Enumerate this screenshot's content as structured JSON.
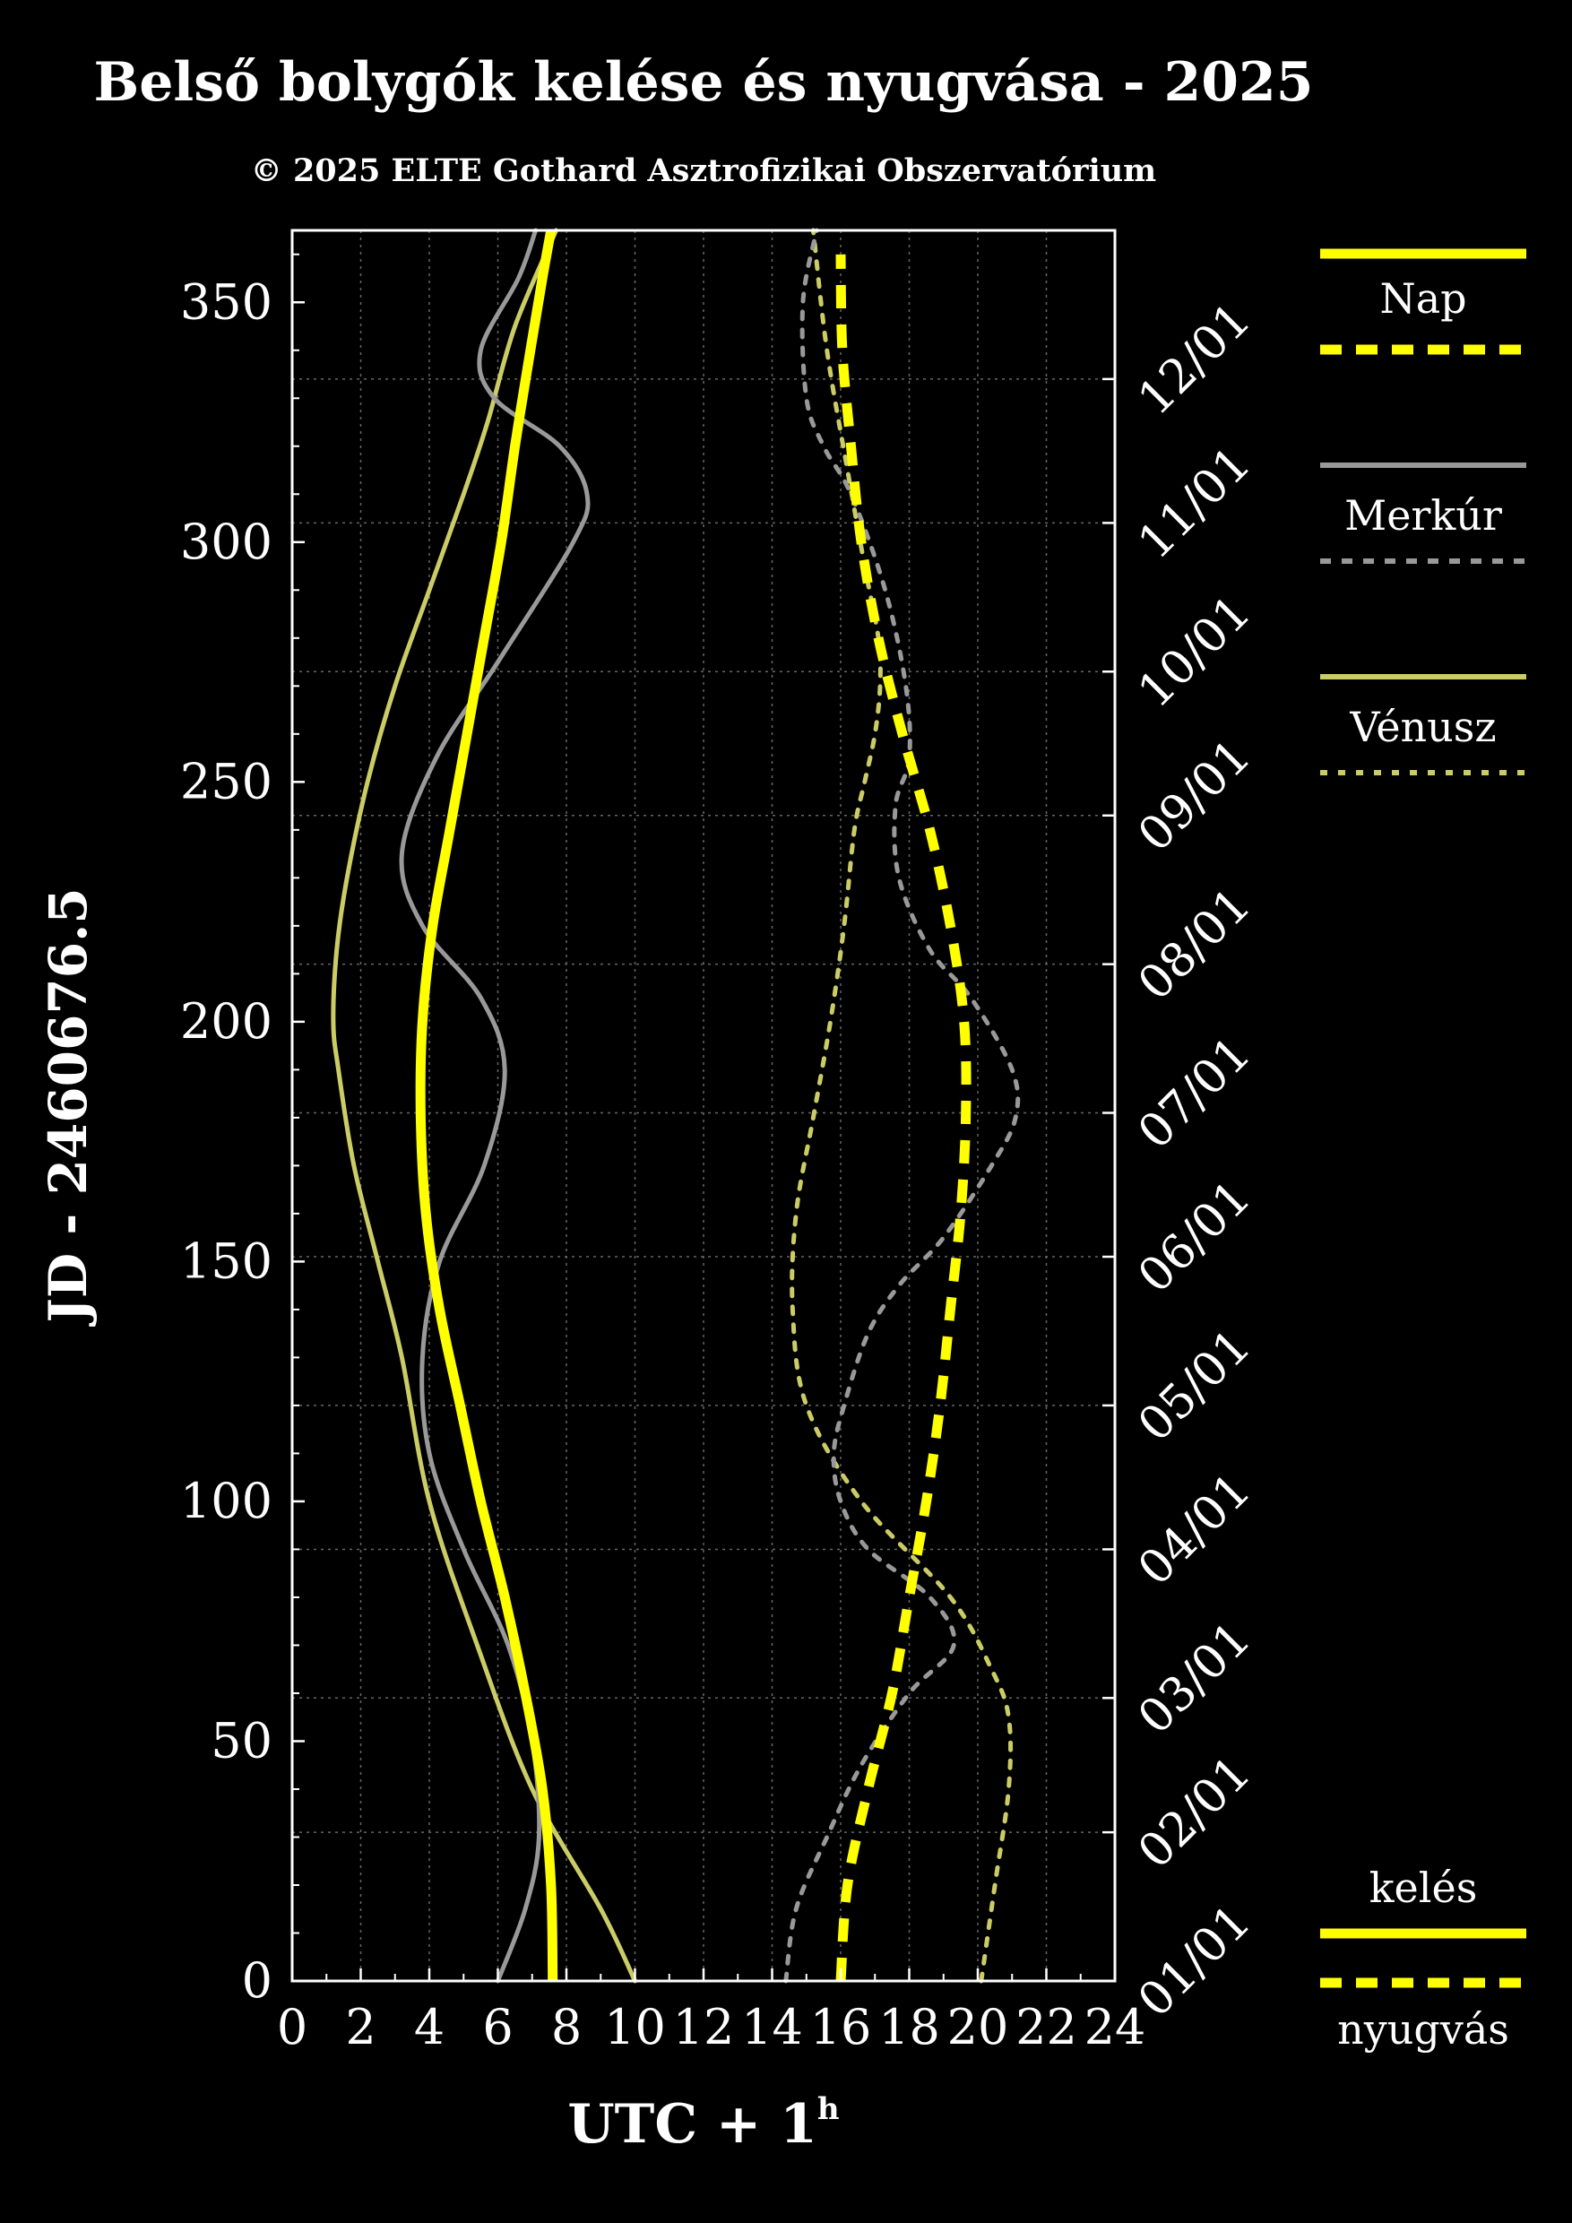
{
  "chart_data": {
    "type": "line",
    "title": "Belső bolygók kelése és nyugvása - 2025",
    "subtitle": "© 2025 ELTE Gothard Asztrofizikai Obszervatórium",
    "xlabel": "UTC + 1",
    "xlabel_sup": "h",
    "ylabel": "JD - 2460676.5",
    "xlim": [
      0,
      24
    ],
    "ylim": [
      0,
      365
    ],
    "x_ticks": [
      "0",
      "2",
      "4",
      "6",
      "8",
      "10",
      "12",
      "14",
      "16",
      "18",
      "20",
      "22",
      "24"
    ],
    "y_ticks": [
      "0",
      "50",
      "100",
      "150",
      "200",
      "250",
      "300",
      "350"
    ],
    "month_labels": [
      {
        "label": "01/01",
        "day": 0
      },
      {
        "label": "02/01",
        "day": 31
      },
      {
        "label": "03/01",
        "day": 59
      },
      {
        "label": "04/01",
        "day": 90
      },
      {
        "label": "05/01",
        "day": 120
      },
      {
        "label": "06/01",
        "day": 151
      },
      {
        "label": "07/01",
        "day": 181
      },
      {
        "label": "08/01",
        "day": 212
      },
      {
        "label": "09/01",
        "day": 243
      },
      {
        "label": "10/01",
        "day": 273
      },
      {
        "label": "11/01",
        "day": 304
      },
      {
        "label": "12/01",
        "day": 334
      }
    ],
    "grid": true,
    "colors": {
      "sun": "#ffff00",
      "mercury": "#999999",
      "venus": "#cccc66",
      "axes": "#ffffff",
      "grid": "#666666"
    },
    "series": [
      {
        "name": "Nap",
        "kind": "kelés",
        "style": "solid",
        "x": [
          7.6,
          7.55,
          7.3,
          6.8,
          6.2,
          5.5,
          4.9,
          4.3,
          3.9,
          3.75,
          3.8,
          4.1,
          4.6,
          5.1,
          5.6,
          6.1,
          6.5,
          6.95,
          7.3,
          7.55
        ],
        "y": [
          0,
          20,
          40,
          60,
          80,
          100,
          120,
          140,
          160,
          180,
          200,
          220,
          240,
          260,
          280,
          300,
          320,
          340,
          355,
          365
        ]
      },
      {
        "name": "Nap",
        "kind": "nyugvás",
        "style": "dashed",
        "x": [
          16.0,
          16.2,
          16.8,
          17.5,
          18.0,
          18.5,
          18.9,
          19.2,
          19.5,
          19.65,
          19.6,
          19.2,
          18.6,
          17.8,
          17.1,
          16.6,
          16.3,
          16.05,
          16.0
        ],
        "y": [
          0,
          20,
          40,
          60,
          80,
          100,
          120,
          140,
          160,
          180,
          200,
          220,
          240,
          260,
          280,
          300,
          320,
          340,
          360
        ]
      },
      {
        "name": "Merkúr",
        "kind": "kelés",
        "style": "solid",
        "x": [
          6.0,
          6.8,
          7.2,
          7.0,
          6.3,
          5.0,
          4.0,
          3.8,
          4.3,
          5.6,
          6.2,
          5.5,
          3.8,
          3.2,
          4.2,
          6.0,
          8.2,
          8.6,
          7.8,
          5.9,
          5.5,
          6.6,
          7.1
        ],
        "y": [
          0,
          15,
          30,
          50,
          70,
          90,
          110,
          130,
          150,
          170,
          190,
          205,
          220,
          235,
          255,
          275,
          300,
          310,
          320,
          330,
          340,
          355,
          365
        ]
      },
      {
        "name": "Merkúr",
        "kind": "nyugvás",
        "style": "dashed",
        "x": [
          14.4,
          14.7,
          15.6,
          16.6,
          18.0,
          19.3,
          18.6,
          16.8,
          16.0,
          15.8,
          16.1,
          16.8,
          17.7,
          19.0,
          20.4,
          21.1,
          21.0,
          19.8,
          18.6,
          17.7,
          17.6,
          18.0,
          17.9,
          17.3,
          16.3,
          15.5,
          15.0,
          14.9,
          15.3
        ],
        "y": [
          0,
          15,
          30,
          45,
          60,
          70,
          80,
          90,
          100,
          110,
          120,
          135,
          145,
          155,
          170,
          180,
          190,
          205,
          215,
          230,
          245,
          255,
          270,
          290,
          310,
          320,
          330,
          350,
          365
        ]
      },
      {
        "name": "Vénusz",
        "kind": "kelés",
        "style": "solid",
        "x": [
          10.0,
          9.0,
          7.0,
          5.4,
          4.0,
          3.2,
          2.5,
          1.8,
          1.35,
          1.2,
          1.3,
          1.6,
          2.2,
          3.0,
          4.0,
          5.0,
          5.7,
          6.5,
          7.7
        ],
        "y": [
          0,
          15,
          40,
          70,
          100,
          130,
          150,
          170,
          190,
          200,
          215,
          230,
          250,
          270,
          290,
          310,
          325,
          345,
          365
        ]
      },
      {
        "name": "Vénusz",
        "kind": "nyugvás",
        "style": "dashed",
        "x": [
          20.1,
          20.5,
          20.9,
          20.9,
          20.4,
          19.2,
          16.6,
          15.0,
          14.6,
          14.7,
          15.2,
          15.7,
          16.1,
          16.4,
          16.7,
          17.0,
          17.15,
          17.1,
          16.7,
          16.2,
          15.6,
          15.2
        ],
        "y": [
          0,
          20,
          40,
          55,
          65,
          80,
          100,
          120,
          140,
          160,
          180,
          200,
          220,
          240,
          250,
          260,
          270,
          280,
          295,
          315,
          340,
          365
        ]
      }
    ],
    "legend": {
      "placement": "right",
      "entries": [
        {
          "label": "Nap",
          "color": "#ffff00"
        },
        {
          "label": "Merkúr",
          "color": "#999999"
        },
        {
          "label": "Vénusz",
          "color": "#cccc66"
        }
      ],
      "styles": [
        {
          "label": "kelés",
          "style": "solid"
        },
        {
          "label": "nyugvás",
          "style": "dashed"
        }
      ]
    }
  }
}
